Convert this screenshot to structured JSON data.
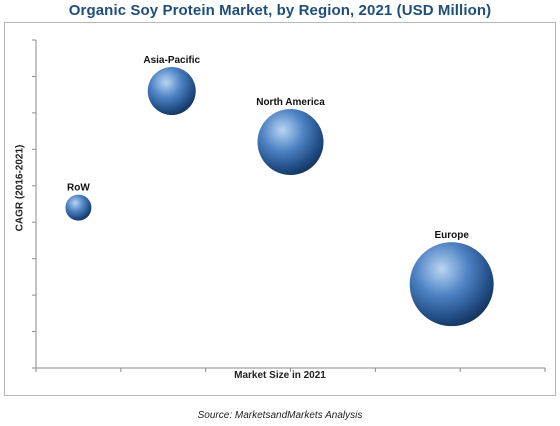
{
  "chart_data": {
    "type": "scatter",
    "title": "Organic Soy Protein Market, by Region, 2021 (USD Million)",
    "xlabel": "Market Size in 2021",
    "ylabel": "CAGR (2016-2021)",
    "grid": false,
    "series": [
      {
        "points": [
          {
            "label": "Asia-Pacific",
            "x": 1.6,
            "y": 7.6,
            "size": 24
          },
          {
            "label": "North America",
            "x": 3.0,
            "y": 6.2,
            "size": 33
          },
          {
            "label": "RoW",
            "x": 0.5,
            "y": 4.4,
            "size": 13
          },
          {
            "label": "Europe",
            "x": 4.9,
            "y": 2.3,
            "size": 42
          }
        ]
      }
    ],
    "xlim": [
      0,
      6
    ],
    "ylim": [
      0,
      9
    ]
  },
  "source": "Source: MarketsandMarkets Analysis",
  "colors": {
    "bubble": "#3d6fae",
    "title": "#1f4e79",
    "axis": "#8a8a8a"
  }
}
